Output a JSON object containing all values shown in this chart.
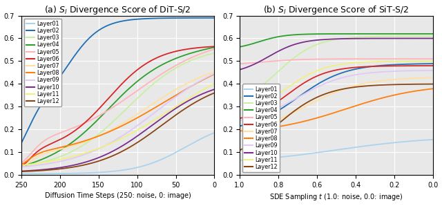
{
  "title_a": "(a) $S_l$ Divergence Score of DiT-S/2",
  "title_b": "(b) $S_l$ Divergence Score of SiT-S/2",
  "xlabel_a": "Diffusion Time Steps (250: noise, 0: image)",
  "xlabel_b": "SDE Sampling $t$ (1.0: noise, 0.0: image)",
  "ylim": [
    0.0,
    0.7
  ],
  "yticks": [
    0.0,
    0.1,
    0.2,
    0.3,
    0.4,
    0.5,
    0.6,
    0.7
  ],
  "layers": [
    "Layer01",
    "Layer02",
    "Layer03",
    "Layer04",
    "Layer05",
    "Layer06",
    "Layer07",
    "Layer08",
    "Layer09",
    "Layer10",
    "Layer11",
    "Layer12"
  ],
  "colors": [
    "#aad4ed",
    "#1f6fb5",
    "#c8f0a0",
    "#2ca02c",
    "#ffb3ba",
    "#d62728",
    "#ffe0a0",
    "#ff7f0e",
    "#e0c8f8",
    "#7b2d8b",
    "#f0f080",
    "#8b4513"
  ],
  "background_color": "#e8e8e8",
  "grid_color": "#ffffff",
  "linewidth": 1.3
}
